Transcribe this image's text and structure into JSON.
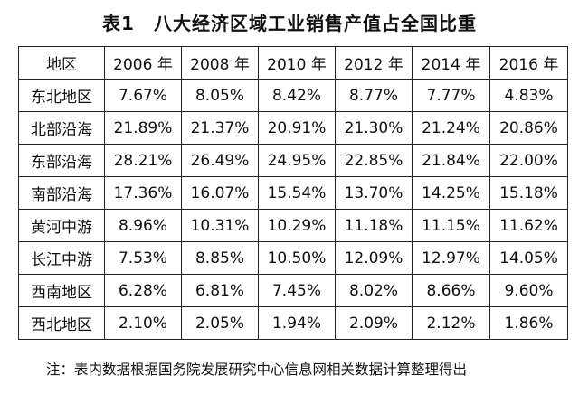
{
  "title": "表1　八大经济区域工业销售产值占全国比重",
  "table": {
    "headers": [
      "地区",
      "2006 年",
      "2008 年",
      "2010 年",
      "2012 年",
      "2014 年",
      "2016 年"
    ],
    "rows": [
      [
        "东北地区",
        "7.67%",
        "8.05%",
        "8.42%",
        "8.77%",
        "7.77%",
        "4.83%"
      ],
      [
        "北部沿海",
        "21.89%",
        "21.37%",
        "20.91%",
        "21.30%",
        "21.24%",
        "20.86%"
      ],
      [
        "东部沿海",
        "28.21%",
        "26.49%",
        "24.95%",
        "22.85%",
        "21.84%",
        "22.00%"
      ],
      [
        "南部沿海",
        "17.36%",
        "16.07%",
        "15.54%",
        "13.70%",
        "14.25%",
        "15.18%"
      ],
      [
        "黄河中游",
        "8.96%",
        "10.31%",
        "10.29%",
        "11.18%",
        "11.15%",
        "11.62%"
      ],
      [
        "长江中游",
        "7.53%",
        "8.85%",
        "10.50%",
        "12.09%",
        "12.97%",
        "14.05%"
      ],
      [
        "西南地区",
        "6.28%",
        "6.81%",
        "7.45%",
        "8.02%",
        "8.66%",
        "9.60%"
      ],
      [
        "西北地区",
        "2.10%",
        "2.05%",
        "1.94%",
        "2.09%",
        "2.12%",
        "1.86%"
      ]
    ]
  },
  "note": "注：表内数据根据国务院发展研究中心信息网相关数据计算整理得出"
}
